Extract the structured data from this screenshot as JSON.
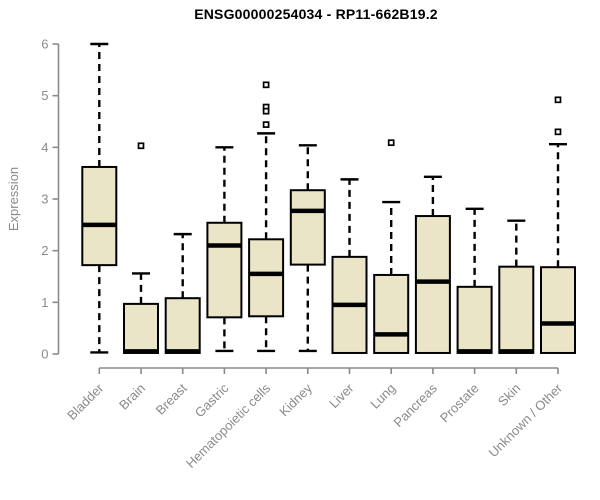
{
  "chart_data": {
    "type": "boxplot",
    "title": "ENSG00000254034 - RP11-662B19.2",
    "ylabel": "Expression",
    "xlabel": "",
    "ylim": [
      0,
      6
    ],
    "yticks": [
      0,
      1,
      2,
      3,
      4,
      5,
      6
    ],
    "grid": false,
    "legend": "none",
    "categories": [
      "Bladder",
      "Brain",
      "Breast",
      "Gastric",
      "Hematopoietic cells",
      "Kidney",
      "Liver",
      "Lung",
      "Pancreas",
      "Prostate",
      "Skin",
      "Unknown / Other"
    ],
    "series": [
      {
        "name": "Bladder",
        "whisker_low": 0.03,
        "q1": 1.72,
        "median": 2.5,
        "q3": 3.62,
        "whisker_high": 6.0,
        "outliers": []
      },
      {
        "name": "Brain",
        "whisker_low": 0.02,
        "q1": 0.02,
        "median": 0.05,
        "q3": 0.97,
        "whisker_high": 1.56,
        "outliers": [
          4.03
        ]
      },
      {
        "name": "Breast",
        "whisker_low": 0.02,
        "q1": 0.02,
        "median": 0.05,
        "q3": 1.08,
        "whisker_high": 2.32,
        "outliers": []
      },
      {
        "name": "Gastric",
        "whisker_low": 0.06,
        "q1": 0.71,
        "median": 2.1,
        "q3": 2.54,
        "whisker_high": 4.0,
        "outliers": []
      },
      {
        "name": "Hematopoietic cells",
        "whisker_low": 0.06,
        "q1": 0.73,
        "median": 1.55,
        "q3": 2.22,
        "whisker_high": 4.27,
        "outliers": [
          5.21,
          4.78,
          4.7,
          4.44
        ]
      },
      {
        "name": "Kidney",
        "whisker_low": 0.06,
        "q1": 1.73,
        "median": 2.77,
        "q3": 3.17,
        "whisker_high": 4.04,
        "outliers": []
      },
      {
        "name": "Liver",
        "whisker_low": 0.02,
        "q1": 0.02,
        "median": 0.95,
        "q3": 1.88,
        "whisker_high": 3.38,
        "outliers": []
      },
      {
        "name": "Lung",
        "whisker_low": 0.02,
        "q1": 0.02,
        "median": 0.38,
        "q3": 1.53,
        "whisker_high": 2.94,
        "outliers": [
          4.09
        ]
      },
      {
        "name": "Pancreas",
        "whisker_low": 0.02,
        "q1": 0.02,
        "median": 1.4,
        "q3": 2.67,
        "whisker_high": 3.43,
        "outliers": []
      },
      {
        "name": "Prostate",
        "whisker_low": 0.02,
        "q1": 0.02,
        "median": 0.05,
        "q3": 1.3,
        "whisker_high": 2.81,
        "outliers": []
      },
      {
        "name": "Skin",
        "whisker_low": 0.02,
        "q1": 0.02,
        "median": 0.05,
        "q3": 1.69,
        "whisker_high": 2.58,
        "outliers": []
      },
      {
        "name": "Unknown / Other",
        "whisker_low": 0.02,
        "q1": 0.02,
        "median": 0.59,
        "q3": 1.68,
        "whisker_high": 4.06,
        "outliers": [
          4.92,
          4.3
        ]
      }
    ],
    "colors": {
      "box_fill": "#EBE5C7",
      "box_stroke": "#000000",
      "median": "#000000",
      "whisker": "#000000",
      "outlier_fill": "#ffffff",
      "outlier_stroke": "#000000",
      "axis": "#8a8a8a",
      "axis_text": "#8a8a8a",
      "title_text": "#000000",
      "background": "#ffffff"
    }
  }
}
